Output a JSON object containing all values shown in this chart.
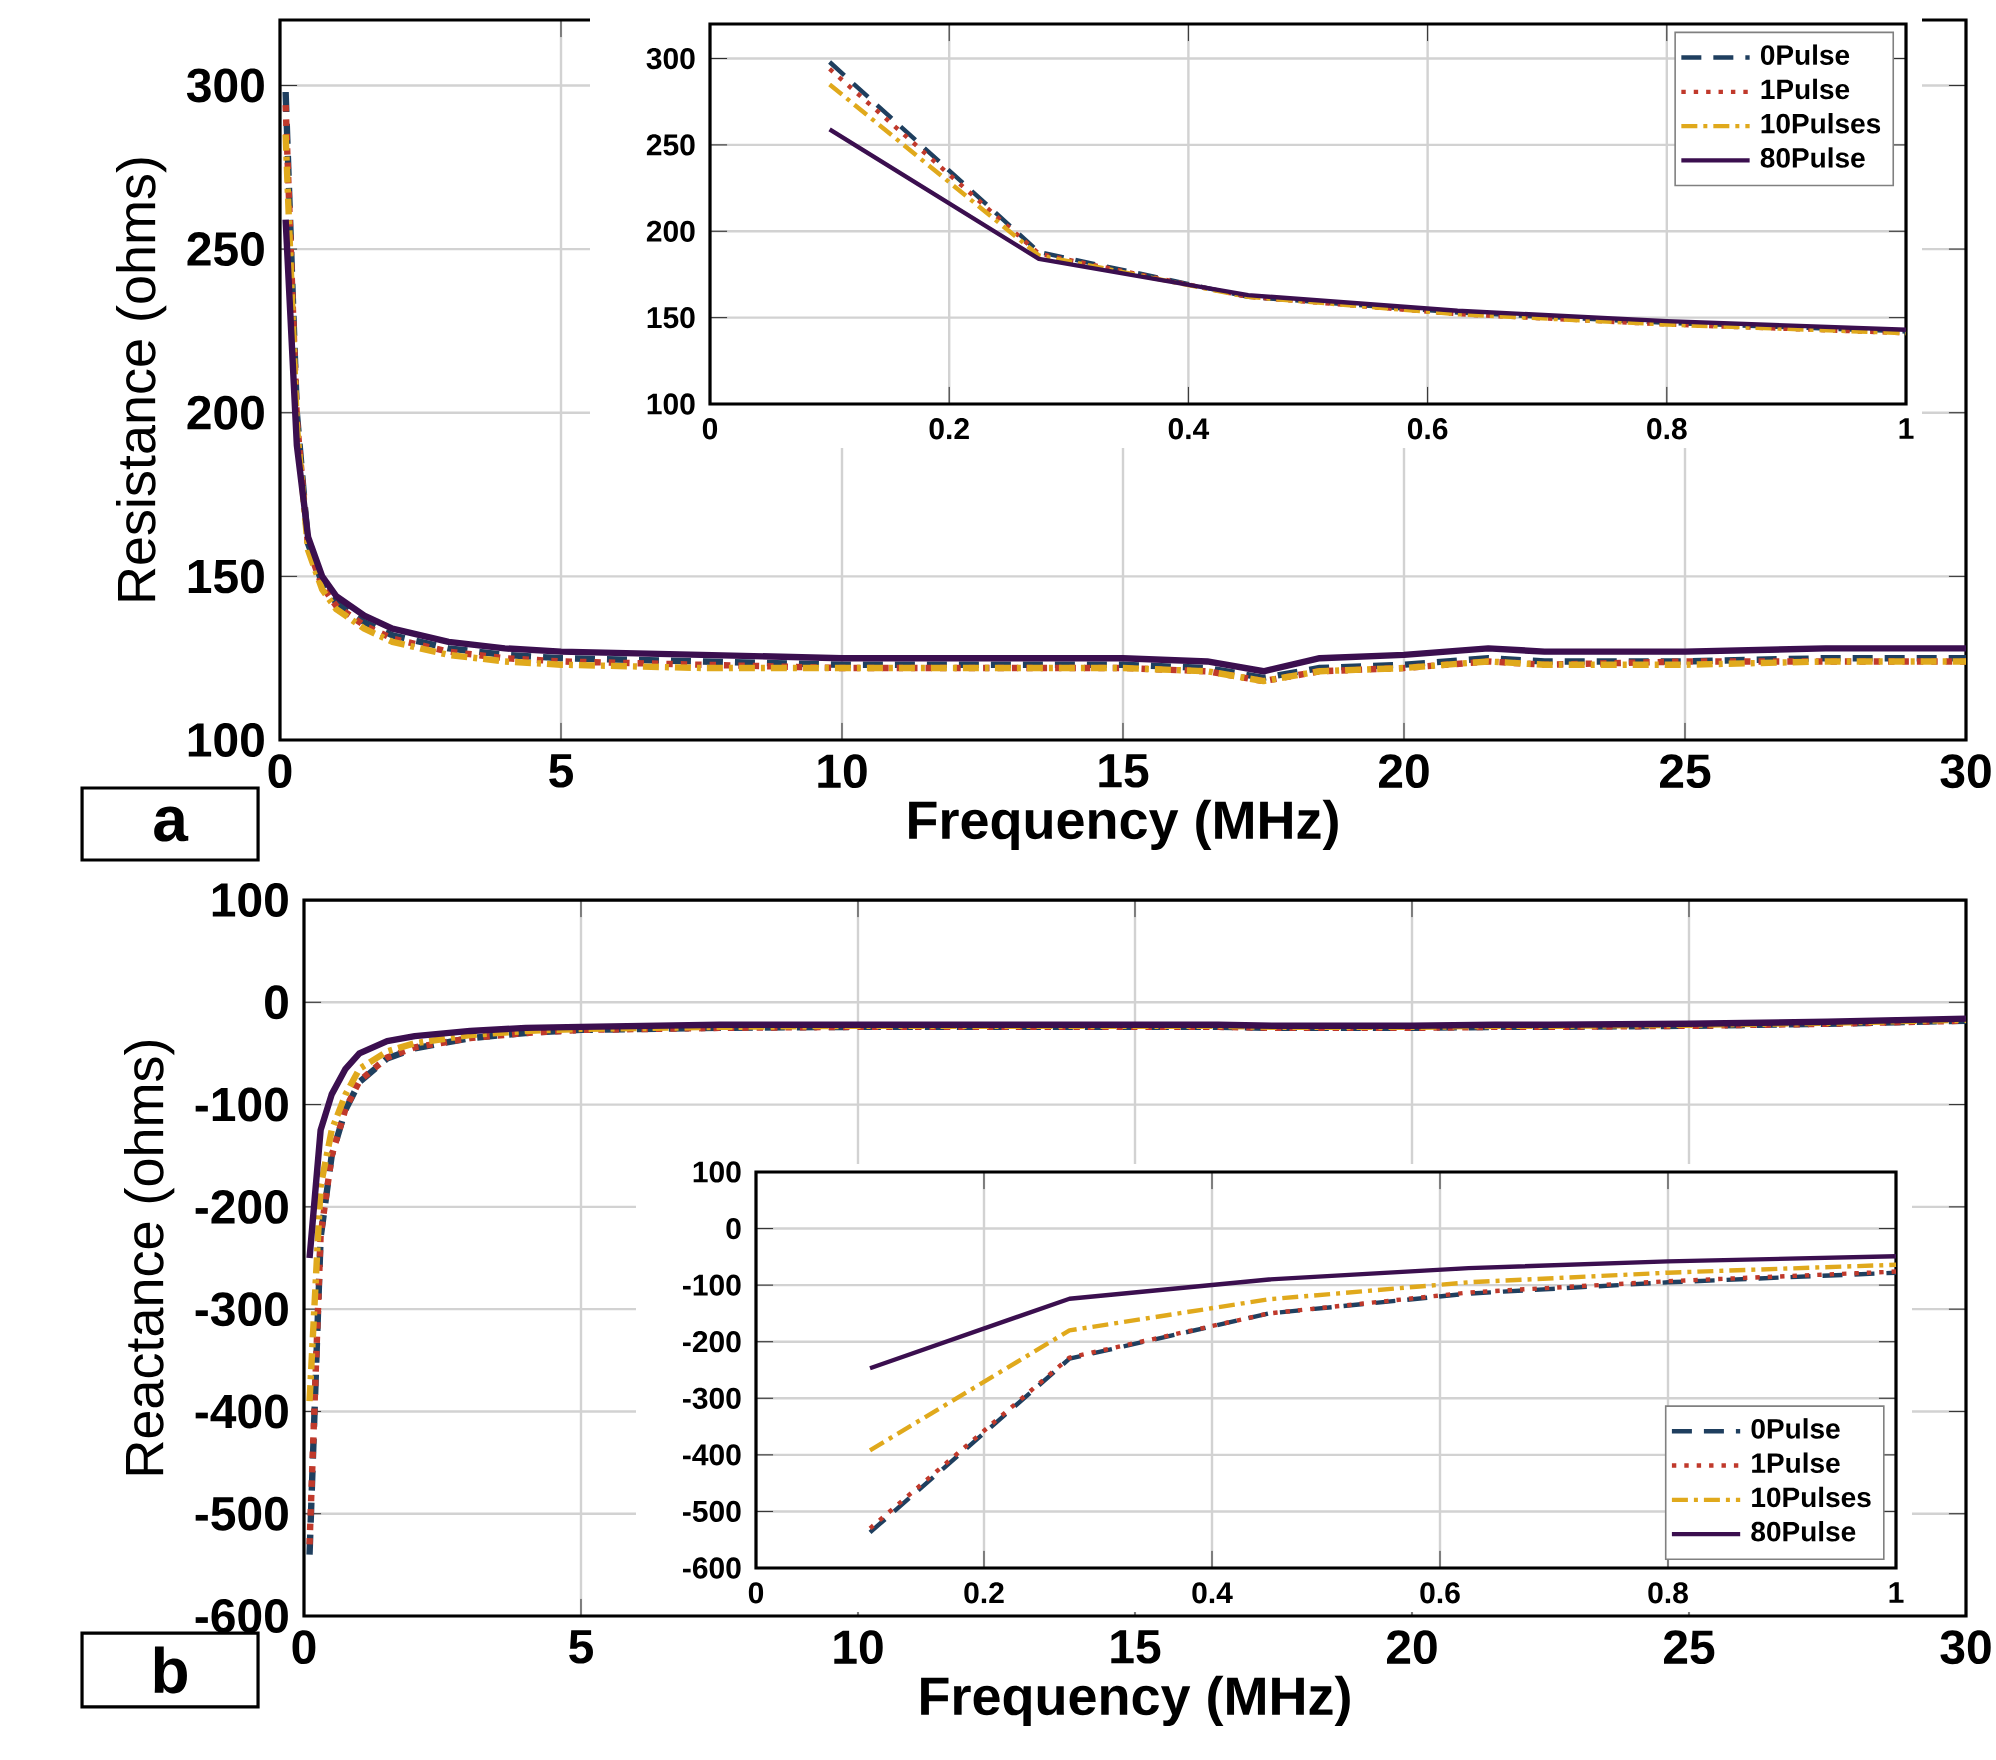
{
  "chart_data": [
    {
      "type": "line",
      "xlabel": "Frequency (MHz)",
      "ylabel": "Resistance (ohms)",
      "annotations": [
        "a"
      ],
      "xlim": [
        0,
        30
      ],
      "ylim": [
        100,
        320
      ],
      "xticks": [
        0,
        5,
        10,
        15,
        20,
        25,
        30
      ],
      "yticks": [
        100,
        150,
        200,
        250,
        300
      ],
      "grid": true,
      "x": [
        0.1,
        0.3,
        0.5,
        0.75,
        1,
        1.5,
        2,
        3,
        4,
        5,
        7.5,
        10,
        12.5,
        15,
        16.5,
        17.5,
        18.5,
        20,
        21.5,
        22.5,
        25,
        27.5,
        30
      ],
      "series": [
        {
          "color": "#1f3f5f",
          "line_style": "dashed",
          "values": [
            298,
            200,
            160,
            148,
            142,
            136,
            132,
            128,
            126,
            125,
            124,
            123,
            123,
            123,
            122,
            119,
            122,
            123,
            125,
            124,
            124,
            125,
            125
          ]
        },
        {
          "color": "#c0392b",
          "line_style": "dotted",
          "values": [
            294,
            198,
            159,
            147,
            141,
            135,
            131,
            127,
            125,
            124,
            123,
            122,
            122,
            122,
            121,
            118,
            121,
            122,
            124,
            123,
            124,
            124,
            124
          ]
        },
        {
          "color": "#e0a91c",
          "line_style": "dashdot",
          "values": [
            285,
            196,
            158,
            146,
            140,
            134,
            130,
            126,
            124,
            123,
            122,
            122,
            122,
            122,
            121,
            118,
            121,
            122,
            124,
            123,
            123,
            124,
            124
          ]
        },
        {
          "color": "#3b0f4f",
          "line_style": "solid",
          "values": [
            259,
            190,
            162,
            150,
            144,
            138,
            134,
            130,
            128,
            127,
            126,
            125,
            125,
            125,
            124,
            121,
            125,
            126,
            128,
            127,
            127,
            128,
            128
          ]
        }
      ]
    },
    {
      "type": "line",
      "xlim": [
        0,
        1
      ],
      "ylim": [
        100,
        320
      ],
      "xticks": [
        0,
        0.2,
        0.4,
        0.6,
        0.8,
        1
      ],
      "yticks": [
        100,
        150,
        200,
        250,
        300
      ],
      "grid": true,
      "legend": "top right",
      "x": [
        0.1,
        0.275,
        0.45,
        0.625,
        0.8,
        1
      ],
      "series": [
        {
          "name": "0Pulse",
          "color": "#1f3f5f",
          "line_style": "dashed",
          "values": [
            298,
            188,
            162,
            153,
            147,
            142
          ]
        },
        {
          "name": "1Pulse",
          "color": "#c0392b",
          "line_style": "dotted",
          "values": [
            294,
            187,
            162,
            152,
            146,
            141
          ]
        },
        {
          "name": "10Pulses",
          "color": "#e0a91c",
          "line_style": "dashdot",
          "values": [
            285,
            186,
            162,
            152,
            146,
            141
          ]
        },
        {
          "name": "80Pulse",
          "color": "#3b0f4f",
          "line_style": "solid",
          "values": [
            259,
            184,
            163,
            154,
            148,
            143
          ]
        }
      ]
    },
    {
      "type": "line",
      "xlabel": "Frequency (MHz)",
      "ylabel": "Reactance (ohms)",
      "annotations": [
        "b"
      ],
      "xlim": [
        0,
        30
      ],
      "ylim": [
        -600,
        100
      ],
      "xticks": [
        0,
        5,
        10,
        15,
        20,
        25,
        30
      ],
      "yticks": [
        -600,
        -500,
        -400,
        -300,
        -200,
        -100,
        0,
        100
      ],
      "grid": true,
      "x": [
        0.1,
        0.3,
        0.5,
        0.75,
        1,
        1.5,
        2,
        3,
        4,
        5,
        7.5,
        10,
        12.5,
        15,
        16.5,
        17.5,
        18.5,
        20,
        21.5,
        22.5,
        25,
        27.5,
        30
      ],
      "series": [
        {
          "color": "#1f3f5f",
          "line_style": "dashed",
          "values": [
            -540,
            -230,
            -150,
            -105,
            -78,
            -55,
            -45,
            -35,
            -30,
            -27,
            -25,
            -24,
            -24,
            -24,
            -24,
            -25,
            -25,
            -25,
            -24,
            -24,
            -23,
            -21,
            -18
          ]
        },
        {
          "color": "#c0392b",
          "line_style": "dotted",
          "values": [
            -530,
            -228,
            -150,
            -104,
            -77,
            -54,
            -44,
            -35,
            -30,
            -27,
            -25,
            -24,
            -24,
            -24,
            -24,
            -25,
            -25,
            -25,
            -24,
            -24,
            -23,
            -21,
            -18
          ]
        },
        {
          "color": "#e0a91c",
          "line_style": "dashdot",
          "values": [
            -390,
            -180,
            -125,
            -90,
            -65,
            -48,
            -40,
            -32,
            -28,
            -26,
            -24,
            -23,
            -23,
            -23,
            -23,
            -24,
            -24,
            -24,
            -23,
            -23,
            -22,
            -20,
            -17
          ]
        },
        {
          "color": "#3b0f4f",
          "line_style": "solid",
          "values": [
            -250,
            -125,
            -90,
            -65,
            -50,
            -38,
            -33,
            -28,
            -25,
            -24,
            -22,
            -22,
            -22,
            -22,
            -22,
            -23,
            -23,
            -23,
            -22,
            -22,
            -21,
            -19,
            -16
          ]
        }
      ]
    },
    {
      "type": "line",
      "xlim": [
        0,
        1
      ],
      "ylim": [
        -600,
        100
      ],
      "xticks": [
        0,
        0.2,
        0.4,
        0.6,
        0.8,
        1
      ],
      "yticks": [
        -600,
        -500,
        -400,
        -300,
        -200,
        -100,
        0,
        100
      ],
      "grid": true,
      "legend": "bottom right",
      "x": [
        0.1,
        0.275,
        0.45,
        0.625,
        0.8,
        1
      ],
      "series": [
        {
          "name": "0Pulse",
          "color": "#1f3f5f",
          "line_style": "dashed",
          "values": [
            -537,
            -230,
            -150,
            -115,
            -95,
            -78
          ]
        },
        {
          "name": "1Pulse",
          "color": "#c0392b",
          "line_style": "dotted",
          "values": [
            -530,
            -228,
            -150,
            -113,
            -93,
            -76
          ]
        },
        {
          "name": "10Pulses",
          "color": "#e0a91c",
          "line_style": "dashdot",
          "values": [
            -392,
            -180,
            -125,
            -95,
            -78,
            -64
          ]
        },
        {
          "name": "80Pulse",
          "color": "#3b0f4f",
          "line_style": "solid",
          "values": [
            -247,
            -124,
            -90,
            -70,
            -58,
            -49
          ]
        }
      ]
    }
  ]
}
